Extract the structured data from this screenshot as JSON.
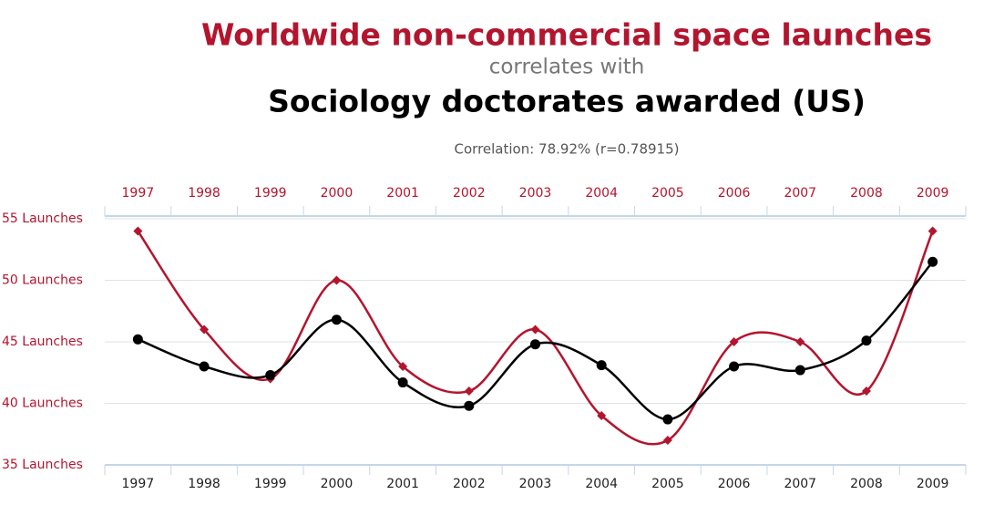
{
  "chart_data": {
    "type": "line",
    "title": "Worldwide non-commercial space launches",
    "subtitle": "correlates with",
    "title2": "Sociology doctorates awarded (US)",
    "annotation": "Correlation: 78.92% (r=0.78915)",
    "categories": [
      "1997",
      "1998",
      "1999",
      "2000",
      "2001",
      "2002",
      "2003",
      "2004",
      "2005",
      "2006",
      "2007",
      "2008",
      "2009"
    ],
    "series": [
      {
        "color": "#b3152e",
        "marker": "diamond",
        "values": [
          54,
          46,
          42,
          50,
          43,
          41,
          46,
          39,
          37,
          45,
          45,
          41,
          54
        ]
      },
      {
        "color": "#000000",
        "marker": "circle",
        "values": [
          45.2,
          43.0,
          42.3,
          46.8,
          41.7,
          39.8,
          44.8,
          43.1,
          38.7,
          43.0,
          42.7,
          45.1,
          51.5
        ]
      }
    ],
    "ylim": [
      35,
      55
    ],
    "yticks": [
      {
        "value": 35,
        "label": "35 Launches"
      },
      {
        "value": 40,
        "label": "40 Launches"
      },
      {
        "value": 45,
        "label": "45 Launches"
      },
      {
        "value": 50,
        "label": "50 Launches"
      },
      {
        "value": 55,
        "label": "55 Launches"
      }
    ],
    "grid": true
  }
}
